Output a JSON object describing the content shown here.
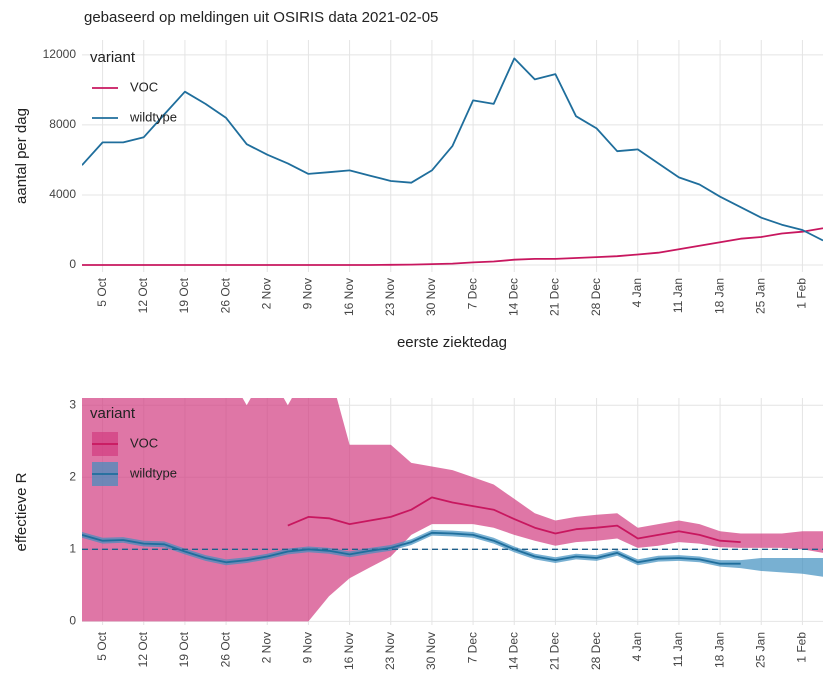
{
  "chart_data": [
    {
      "type": "line",
      "title": "gebaseerd op meldingen uit OSIRIS data 2021-02-05",
      "xlabel": "eerste ziektedag",
      "ylabel": "aantal per dag",
      "legend_title": "variant",
      "grid": true,
      "x": [
        "1 Oct",
        "5 Oct",
        "8 Oct",
        "12 Oct",
        "15 Oct",
        "19 Oct",
        "22 Oct",
        "26 Oct",
        "29 Oct",
        "2 Nov",
        "5 Nov",
        "9 Nov",
        "12 Nov",
        "16 Nov",
        "19 Nov",
        "23 Nov",
        "26 Nov",
        "30 Nov",
        "3 Dec",
        "7 Dec",
        "10 Dec",
        "14 Dec",
        "17 Dec",
        "21 Dec",
        "24 Dec",
        "28 Dec",
        "31 Dec",
        "4 Jan",
        "7 Jan",
        "11 Jan",
        "14 Jan",
        "18 Jan",
        "21 Jan",
        "25 Jan",
        "28 Jan",
        "1 Feb",
        "4 Feb"
      ],
      "xticks": [
        "5 Oct",
        "12 Oct",
        "19 Oct",
        "26 Oct",
        "2 Nov",
        "9 Nov",
        "16 Nov",
        "23 Nov",
        "30 Nov",
        "7 Dec",
        "14 Dec",
        "21 Dec",
        "28 Dec",
        "4 Jan",
        "11 Jan",
        "18 Jan",
        "25 Jan",
        "1 Feb"
      ],
      "ylim": [
        -400,
        12850
      ],
      "yticks": [
        0,
        4000,
        8000,
        12000
      ],
      "series": [
        {
          "name": "VOC",
          "color": "#c8175f",
          "values": [
            0,
            0,
            0,
            0,
            0,
            0,
            0,
            0,
            0,
            0,
            0,
            0,
            0,
            0,
            0,
            10,
            20,
            50,
            80,
            150,
            200,
            300,
            350,
            350,
            400,
            450,
            500,
            600,
            700,
            900,
            1100,
            1300,
            1500,
            1600,
            1800,
            1900,
            2100
          ]
        },
        {
          "name": "wildtype",
          "color": "#1f6e9c",
          "values": [
            5700,
            7000,
            7000,
            7300,
            8600,
            9900,
            9200,
            8400,
            6900,
            6300,
            5800,
            5200,
            5300,
            5400,
            5100,
            4800,
            4700,
            5400,
            6800,
            9400,
            9200,
            11800,
            10600,
            10900,
            8500,
            7800,
            6500,
            6600,
            5800,
            5000,
            4600,
            3900,
            3300,
            2700,
            2300,
            2000,
            1400
          ]
        }
      ]
    },
    {
      "type": "line",
      "ylabel": "effectieve R",
      "legend_title": "variant",
      "grid": true,
      "reference_line": 1,
      "x": [
        "1 Oct",
        "5 Oct",
        "8 Oct",
        "12 Oct",
        "15 Oct",
        "19 Oct",
        "22 Oct",
        "26 Oct",
        "29 Oct",
        "2 Nov",
        "5 Nov",
        "9 Nov",
        "12 Nov",
        "16 Nov",
        "19 Nov",
        "23 Nov",
        "26 Nov",
        "30 Nov",
        "3 Dec",
        "7 Dec",
        "10 Dec",
        "14 Dec",
        "17 Dec",
        "21 Dec",
        "24 Dec",
        "28 Dec",
        "31 Dec",
        "4 Jan",
        "7 Jan",
        "11 Jan",
        "14 Jan",
        "18 Jan",
        "21 Jan",
        "25 Jan",
        "28 Jan",
        "1 Feb",
        "4 Feb"
      ],
      "xticks": [
        "5 Oct",
        "12 Oct",
        "19 Oct",
        "26 Oct",
        "2 Nov",
        "9 Nov",
        "16 Nov",
        "23 Nov",
        "30 Nov",
        "7 Dec",
        "14 Dec",
        "21 Dec",
        "28 Dec",
        "4 Jan",
        "11 Jan",
        "18 Jan",
        "25 Jan",
        "1 Feb"
      ],
      "ylim": [
        -0.05,
        3.1
      ],
      "yticks": [
        0,
        1,
        2,
        3
      ],
      "series": [
        {
          "name": "VOC",
          "color": "#c8175f",
          "band_color": "#d23c80",
          "values": [
            null,
            null,
            null,
            null,
            null,
            null,
            null,
            null,
            null,
            null,
            1.33,
            1.45,
            1.43,
            1.35,
            1.4,
            1.45,
            1.55,
            1.72,
            1.65,
            1.6,
            1.55,
            1.42,
            1.3,
            1.22,
            1.28,
            1.3,
            1.33,
            1.15,
            1.2,
            1.25,
            1.2,
            1.12,
            1.1,
            null,
            null,
            null,
            null
          ],
          "lower": [
            0,
            0,
            0,
            0,
            0,
            0,
            0,
            0,
            0,
            0,
            0,
            0,
            0.35,
            0.6,
            0.75,
            0.9,
            1.2,
            1.35,
            1.35,
            1.35,
            1.3,
            1.2,
            1.12,
            1.05,
            1.1,
            1.12,
            1.15,
            1.02,
            1.05,
            1.1,
            1.08,
            1.03,
            1.02,
            1.02,
            1.02,
            1.0,
            0.95
          ],
          "upper": [
            3.5,
            3.5,
            3.5,
            3.5,
            3.5,
            3.5,
            3.5,
            3.5,
            3.0,
            3.5,
            3.0,
            3.5,
            3.5,
            2.45,
            2.45,
            2.45,
            2.2,
            2.15,
            2.1,
            2.0,
            1.9,
            1.7,
            1.5,
            1.4,
            1.45,
            1.48,
            1.5,
            1.3,
            1.35,
            1.4,
            1.35,
            1.25,
            1.22,
            1.22,
            1.22,
            1.25,
            1.25
          ]
        },
        {
          "name": "wildtype",
          "color": "#1f6e9c",
          "band_color": "#3f8fbf",
          "values": [
            1.2,
            1.12,
            1.13,
            1.08,
            1.07,
            0.97,
            0.88,
            0.82,
            0.85,
            0.9,
            0.97,
            1.0,
            0.98,
            0.93,
            0.98,
            1.02,
            1.1,
            1.23,
            1.22,
            1.2,
            1.12,
            1.0,
            0.9,
            0.85,
            0.9,
            0.88,
            0.95,
            0.82,
            0.87,
            0.88,
            0.86,
            0.8,
            0.8,
            null,
            null,
            null,
            null
          ],
          "lower": [
            1.16,
            1.08,
            1.09,
            1.04,
            1.03,
            0.93,
            0.84,
            0.78,
            0.81,
            0.86,
            0.93,
            0.96,
            0.94,
            0.89,
            0.94,
            0.98,
            1.06,
            1.19,
            1.18,
            1.16,
            1.08,
            0.96,
            0.86,
            0.81,
            0.86,
            0.84,
            0.91,
            0.78,
            0.83,
            0.84,
            0.82,
            0.76,
            0.74,
            0.7,
            0.68,
            0.66,
            0.62
          ],
          "upper": [
            1.24,
            1.16,
            1.17,
            1.12,
            1.11,
            1.01,
            0.92,
            0.86,
            0.89,
            0.94,
            1.01,
            1.04,
            1.02,
            0.97,
            1.02,
            1.06,
            1.14,
            1.27,
            1.26,
            1.24,
            1.16,
            1.04,
            0.94,
            0.89,
            0.94,
            0.92,
            0.99,
            0.86,
            0.91,
            0.92,
            0.9,
            0.85,
            0.85,
            0.88,
            0.88,
            0.88,
            0.88
          ]
        }
      ]
    }
  ]
}
